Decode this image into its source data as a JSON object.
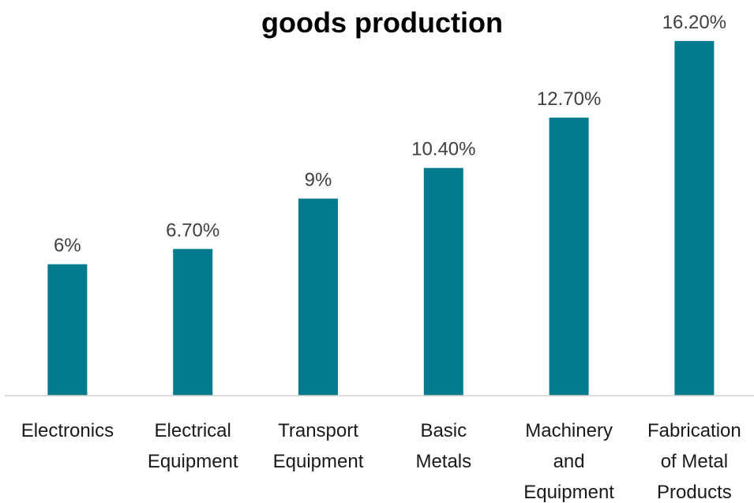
{
  "chart_data": {
    "type": "bar",
    "title": "goods production",
    "categories": [
      "Electronics",
      "Electrical\nEquipment",
      "Transport\nEquipment",
      "Basic\nMetals",
      "Machinery\nand\nEquipment",
      "Fabrication\nof Metal\nProducts"
    ],
    "values": [
      6,
      6.7,
      9,
      10.4,
      12.7,
      16.2
    ],
    "value_labels": [
      "6%",
      "6.70%",
      "9%",
      "10.40%",
      "12.70%",
      "16.20%"
    ],
    "color": "#027b8e",
    "ylim": [
      0,
      18
    ]
  }
}
